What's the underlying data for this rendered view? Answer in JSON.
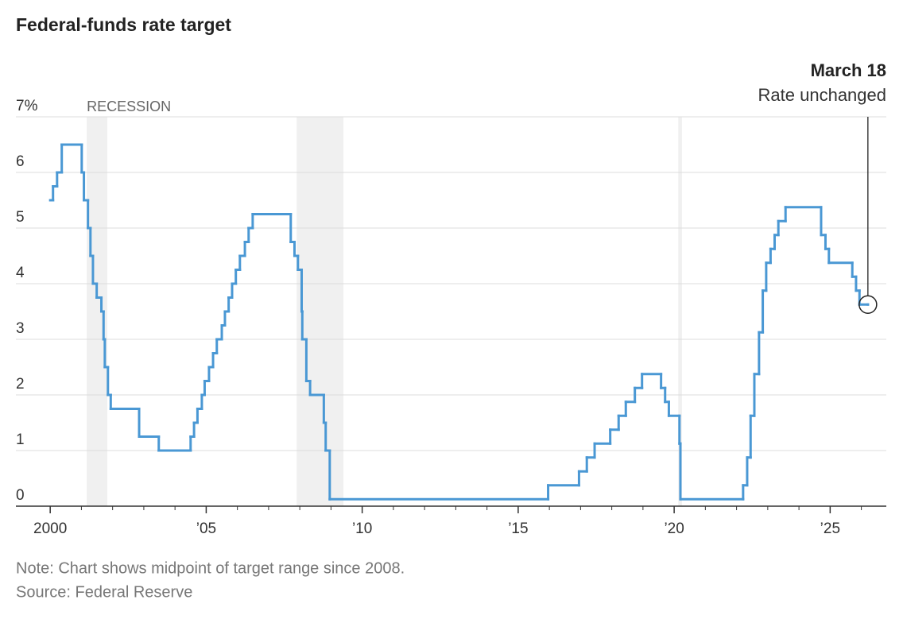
{
  "chart_data": {
    "type": "line",
    "step": true,
    "title": "Federal-funds rate target",
    "notes": [
      "Note: Chart shows midpoint of target range since 2008.",
      "Source: Federal Reserve"
    ],
    "annotation": {
      "title": "March 18",
      "text": "Rate unchanged",
      "x": 2026.21,
      "y": 3.625
    },
    "recession_label": "RECESSION",
    "recessions": [
      [
        2001.17,
        2001.83
      ],
      [
        2007.9,
        2009.4
      ],
      [
        2020.13,
        2020.25
      ]
    ],
    "series": [
      {
        "name": "Federal-funds rate target",
        "color": "#4a98d4",
        "x": [
          2000.0,
          2000.09,
          2000.22,
          2000.37,
          2001.01,
          2001.08,
          2001.21,
          2001.29,
          2001.37,
          2001.49,
          2001.64,
          2001.71,
          2001.75,
          2001.85,
          2001.94,
          2002.85,
          2003.48,
          2004.5,
          2004.61,
          2004.72,
          2004.86,
          2004.95,
          2005.09,
          2005.22,
          2005.34,
          2005.5,
          2005.6,
          2005.72,
          2005.83,
          2005.95,
          2006.08,
          2006.24,
          2006.36,
          2006.49,
          2007.71,
          2007.83,
          2007.94,
          2008.06,
          2008.08,
          2008.21,
          2008.33,
          2008.77,
          2008.83,
          2008.96,
          2015.96,
          2016.95,
          2017.2,
          2017.45,
          2017.95,
          2018.22,
          2018.45,
          2018.74,
          2018.97,
          2019.58,
          2019.71,
          2019.83,
          2020.17,
          2020.2,
          2022.21,
          2022.34,
          2022.45,
          2022.57,
          2022.72,
          2022.84,
          2022.95,
          2023.09,
          2023.22,
          2023.34,
          2023.57,
          2024.71,
          2024.85,
          2024.96,
          2025.71,
          2025.83,
          2025.94,
          2026.21
        ],
        "values": [
          5.5,
          5.75,
          6.0,
          6.5,
          6.0,
          5.5,
          5.0,
          4.5,
          4.0,
          3.75,
          3.5,
          3.0,
          2.5,
          2.0,
          1.75,
          1.25,
          1.0,
          1.25,
          1.5,
          1.75,
          2.0,
          2.25,
          2.5,
          2.75,
          3.0,
          3.25,
          3.5,
          3.75,
          4.0,
          4.25,
          4.5,
          4.75,
          5.0,
          5.25,
          4.75,
          4.5,
          4.25,
          3.5,
          3.0,
          2.25,
          2.0,
          1.5,
          1.0,
          0.125,
          0.375,
          0.625,
          0.875,
          1.125,
          1.375,
          1.625,
          1.875,
          2.125,
          2.375,
          2.125,
          1.875,
          1.625,
          1.125,
          0.125,
          0.375,
          0.875,
          1.625,
          2.375,
          3.125,
          3.875,
          4.375,
          4.625,
          4.875,
          5.125,
          5.375,
          4.875,
          4.625,
          4.375,
          4.125,
          3.875,
          3.625,
          3.625
        ]
      }
    ],
    "xlim": [
      1998.9,
      2026.8
    ],
    "xticks": [
      {
        "value": 2000,
        "label": "2000"
      },
      {
        "value": 2005,
        "label": "’05"
      },
      {
        "value": 2010,
        "label": "’10"
      },
      {
        "value": 2015,
        "label": "’15"
      },
      {
        "value": 2020,
        "label": "’20"
      },
      {
        "value": 2025,
        "label": "’25"
      }
    ],
    "xminorticks": [
      2001,
      2002,
      2003,
      2004,
      2006,
      2007,
      2008,
      2009,
      2011,
      2012,
      2013,
      2014,
      2016,
      2017,
      2018,
      2019,
      2021,
      2022,
      2023,
      2024,
      2026
    ],
    "ylim": [
      0,
      7
    ],
    "yticks": [
      0,
      1,
      2,
      3,
      4,
      5,
      6,
      {
        "value": 7,
        "label": "7%"
      }
    ],
    "grid": true
  }
}
